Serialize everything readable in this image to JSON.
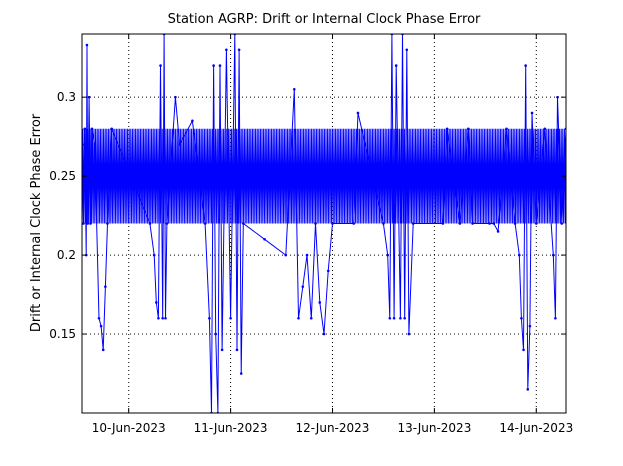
{
  "chart_data": {
    "type": "line",
    "title": "Station AGRP: Drift or Internal Clock Phase Error",
    "xlabel": "",
    "ylabel": "Drift or Internal Clock Phase Error",
    "x_range": [
      "2023-06-09T13:00",
      "2023-06-14T07:00"
    ],
    "ylim": [
      0.1,
      0.34
    ],
    "x_ticks": [
      {
        "date": "2023-06-10",
        "label": "10-Jun-2023"
      },
      {
        "date": "2023-06-11",
        "label": "11-Jun-2023"
      },
      {
        "date": "2023-06-12",
        "label": "12-Jun-2023"
      },
      {
        "date": "2023-06-13",
        "label": "13-Jun-2023"
      },
      {
        "date": "2023-06-14",
        "label": "14-Jun-2023"
      }
    ],
    "y_ticks": [
      {
        "value": 0.15,
        "label": "0.15"
      },
      {
        "value": 0.2,
        "label": "0.2"
      },
      {
        "value": 0.25,
        "label": "0.25"
      },
      {
        "value": 0.3,
        "label": "0.3"
      }
    ],
    "grid": true,
    "line_color": "#0000ff",
    "series": [
      {
        "band_low": 0.22,
        "band_high": 0.28,
        "points": [
          [
            "2023-06-09T13:00",
            0.22
          ],
          [
            "2023-06-09T13:10",
            0.27
          ],
          [
            "2023-06-09T13:20",
            0.22
          ],
          [
            "2023-06-09T13:40",
            0.28
          ],
          [
            "2023-06-09T14:00",
            0.2
          ],
          [
            "2023-06-09T14:10",
            0.333
          ],
          [
            "2023-06-09T14:20",
            0.22
          ],
          [
            "2023-06-09T14:40",
            0.3
          ],
          [
            "2023-06-09T15:00",
            0.22
          ],
          [
            "2023-06-09T15:20",
            0.28
          ],
          [
            "2023-06-09T16:00",
            0.27
          ],
          [
            "2023-06-09T17:00",
            0.16
          ],
          [
            "2023-06-09T17:30",
            0.155
          ],
          [
            "2023-06-09T18:00",
            0.14
          ],
          [
            "2023-06-09T18:30",
            0.18
          ],
          [
            "2023-06-09T19:00",
            0.22
          ],
          [
            "2023-06-09T20:00",
            0.28
          ],
          [
            "2023-06-10T05:00",
            0.22
          ],
          [
            "2023-06-10T06:00",
            0.2
          ],
          [
            "2023-06-10T06:30",
            0.17
          ],
          [
            "2023-06-10T07:00",
            0.16
          ],
          [
            "2023-06-10T07:30",
            0.32
          ],
          [
            "2023-06-10T08:00",
            0.16
          ],
          [
            "2023-06-10T08:20",
            0.34
          ],
          [
            "2023-06-10T08:40",
            0.16
          ],
          [
            "2023-06-10T09:00",
            0.22
          ],
          [
            "2023-06-10T11:00",
            0.3
          ],
          [
            "2023-06-10T12:00",
            0.27
          ],
          [
            "2023-06-10T15:00",
            0.285
          ],
          [
            "2023-06-10T18:00",
            0.22
          ],
          [
            "2023-06-10T19:00",
            0.16
          ],
          [
            "2023-06-10T19:30",
            0.1
          ],
          [
            "2023-06-10T20:00",
            0.32
          ],
          [
            "2023-06-10T20:30",
            0.15
          ],
          [
            "2023-06-10T21:00",
            0.1
          ],
          [
            "2023-06-10T21:30",
            0.32
          ],
          [
            "2023-06-10T22:00",
            0.14
          ],
          [
            "2023-06-10T23:00",
            0.33
          ],
          [
            "2023-06-11T00:00",
            0.16
          ],
          [
            "2023-06-11T01:00",
            0.34
          ],
          [
            "2023-06-11T01:30",
            0.14
          ],
          [
            "2023-06-11T02:00",
            0.33
          ],
          [
            "2023-06-11T02:30",
            0.125
          ],
          [
            "2023-06-11T03:00",
            0.22
          ],
          [
            "2023-06-11T08:00",
            0.21
          ],
          [
            "2023-06-11T13:00",
            0.2
          ],
          [
            "2023-06-11T15:00",
            0.305
          ],
          [
            "2023-06-11T16:00",
            0.16
          ],
          [
            "2023-06-11T17:00",
            0.18
          ],
          [
            "2023-06-11T18:00",
            0.2
          ],
          [
            "2023-06-11T19:00",
            0.16
          ],
          [
            "2023-06-11T20:00",
            0.22
          ],
          [
            "2023-06-11T21:00",
            0.17
          ],
          [
            "2023-06-11T22:00",
            0.15
          ],
          [
            "2023-06-11T23:00",
            0.19
          ],
          [
            "2023-06-12T00:00",
            0.22
          ],
          [
            "2023-06-12T05:00",
            0.22
          ],
          [
            "2023-06-12T06:00",
            0.29
          ],
          [
            "2023-06-12T12:00",
            0.22
          ],
          [
            "2023-06-12T13:00",
            0.2
          ],
          [
            "2023-06-12T13:30",
            0.16
          ],
          [
            "2023-06-12T14:00",
            0.34
          ],
          [
            "2023-06-12T14:30",
            0.16
          ],
          [
            "2023-06-12T15:00",
            0.32
          ],
          [
            "2023-06-12T16:00",
            0.16
          ],
          [
            "2023-06-12T16:30",
            0.34
          ],
          [
            "2023-06-12T17:00",
            0.16
          ],
          [
            "2023-06-12T17:30",
            0.33
          ],
          [
            "2023-06-12T18:00",
            0.15
          ],
          [
            "2023-06-12T19:00",
            0.22
          ],
          [
            "2023-06-13T02:00",
            0.22
          ],
          [
            "2023-06-13T03:00",
            0.28
          ],
          [
            "2023-06-13T06:00",
            0.22
          ],
          [
            "2023-06-13T08:00",
            0.28
          ],
          [
            "2023-06-13T09:00",
            0.22
          ],
          [
            "2023-06-13T13:00",
            0.22
          ],
          [
            "2023-06-13T14:00",
            0.22
          ],
          [
            "2023-06-13T15:00",
            0.215
          ],
          [
            "2023-06-13T17:00",
            0.28
          ],
          [
            "2023-06-13T19:00",
            0.22
          ],
          [
            "2023-06-13T20:00",
            0.2
          ],
          [
            "2023-06-13T20:30",
            0.16
          ],
          [
            "2023-06-13T21:00",
            0.14
          ],
          [
            "2023-06-13T21:30",
            0.32
          ],
          [
            "2023-06-13T22:00",
            0.115
          ],
          [
            "2023-06-13T22:30",
            0.155
          ],
          [
            "2023-06-13T23:00",
            0.29
          ],
          [
            "2023-06-14T00:00",
            0.22
          ],
          [
            "2023-06-14T02:00",
            0.28
          ],
          [
            "2023-06-14T04:00",
            0.2
          ],
          [
            "2023-06-14T04:30",
            0.16
          ],
          [
            "2023-06-14T05:00",
            0.3
          ],
          [
            "2023-06-14T06:00",
            0.22
          ],
          [
            "2023-06-14T07:00",
            0.28
          ]
        ]
      }
    ]
  }
}
